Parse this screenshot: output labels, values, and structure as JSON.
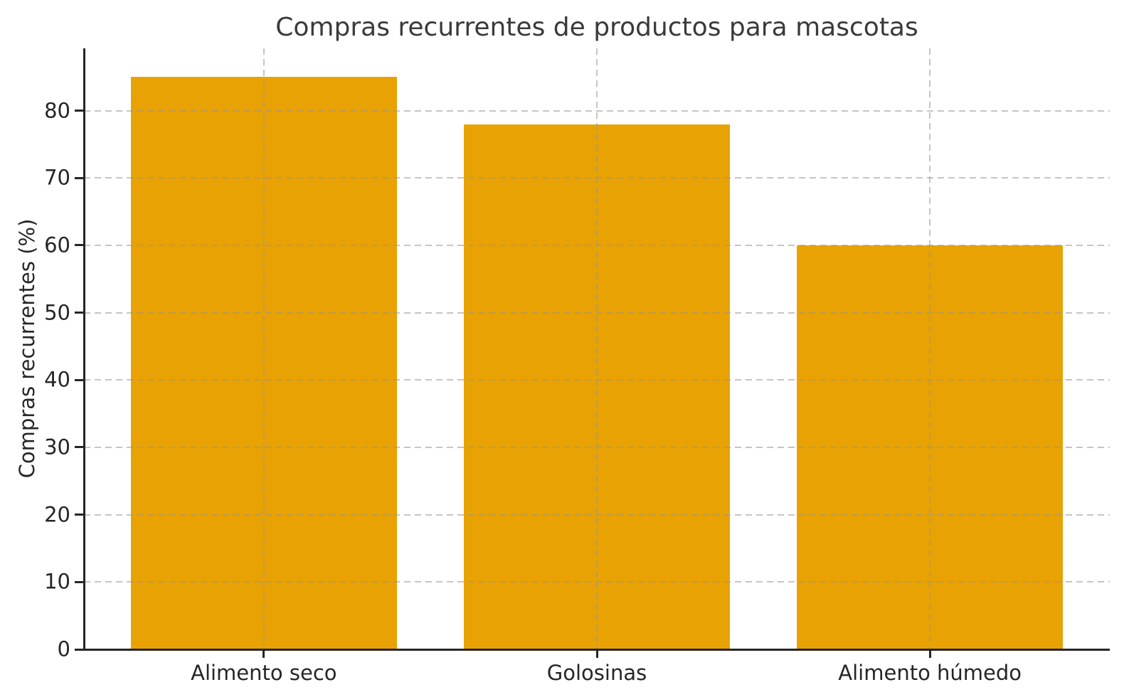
{
  "chart_data": {
    "type": "bar",
    "title": "Compras recurrentes de productos para mascotas",
    "xlabel": "",
    "ylabel": "Compras recurrentes (%)",
    "categories": [
      "Alimento seco",
      "Golosinas",
      "Alimento húmedo"
    ],
    "values": [
      85,
      78,
      60
    ],
    "yticks": [
      0,
      10,
      20,
      30,
      40,
      50,
      60,
      70,
      80
    ],
    "ylim": [
      0,
      89.25
    ],
    "bar_color": "#e8a203",
    "grid": true,
    "grid_color_rgba": "rgba(150,150,150,0.55)",
    "spine_color": "#262626",
    "text_color": "#262626",
    "title_color": "#3a3a3a",
    "background_color": "#ffffff",
    "legend": "none",
    "gridlines_over_bars": true
  }
}
